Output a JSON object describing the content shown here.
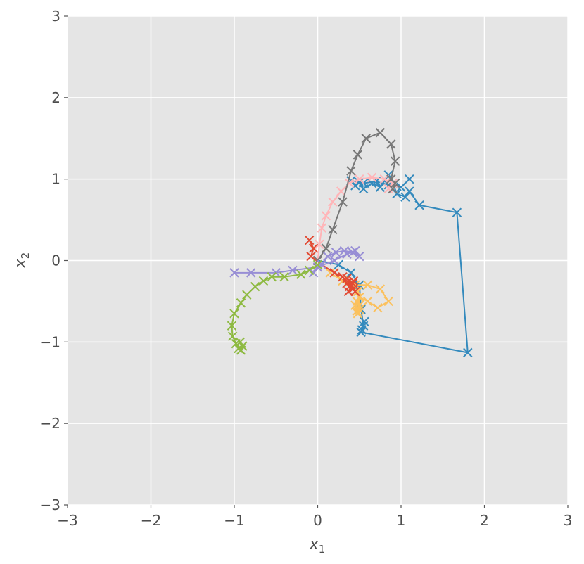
{
  "chart_data": {
    "type": "line",
    "xlabel": "x",
    "xlabel_sub": "1",
    "ylabel": "x",
    "ylabel_sub": "2",
    "xlim": [
      -3,
      3
    ],
    "ylim": [
      -3,
      3
    ],
    "grid": true,
    "marker": "x",
    "xticks": [
      {
        "value": -3,
        "label": "−3"
      },
      {
        "value": -2,
        "label": "−2"
      },
      {
        "value": -1,
        "label": "−1"
      },
      {
        "value": 0,
        "label": "0"
      },
      {
        "value": 1,
        "label": "1"
      },
      {
        "value": 2,
        "label": "2"
      },
      {
        "value": 3,
        "label": "3"
      }
    ],
    "yticks": [
      {
        "value": -3,
        "label": "−3"
      },
      {
        "value": -2,
        "label": "−2"
      },
      {
        "value": -1,
        "label": "−1"
      },
      {
        "value": 0,
        "label": "0"
      },
      {
        "value": 1,
        "label": "1"
      },
      {
        "value": 2,
        "label": "2"
      },
      {
        "value": 3,
        "label": "3"
      }
    ],
    "series": [
      {
        "color": "#348abd",
        "points": [
          [
            0,
            0
          ],
          [
            0.25,
            -0.05
          ],
          [
            0.4,
            -0.15
          ],
          [
            0.5,
            -0.3
          ],
          [
            0.52,
            -0.6
          ],
          [
            0.55,
            -0.8
          ],
          [
            0.53,
            -0.85
          ],
          [
            0.56,
            -0.75
          ],
          [
            0.52,
            -0.88
          ],
          [
            1.8,
            -1.13
          ],
          [
            1.67,
            0.59
          ],
          [
            1.22,
            0.68
          ],
          [
            1.1,
            0.85
          ],
          [
            1.05,
            0.78
          ],
          [
            0.95,
            0.82
          ],
          [
            0.9,
            0.95
          ],
          [
            0.85,
            1.05
          ],
          [
            0.75,
            0.9
          ],
          [
            0.65,
            0.95
          ],
          [
            0.55,
            0.88
          ],
          [
            0.5,
            0.96
          ],
          [
            0.45,
            0.92
          ],
          [
            0.4,
            0.98
          ],
          [
            0.55,
            0.95
          ],
          [
            0.7,
            0.97
          ],
          [
            0.85,
            0.93
          ],
          [
            1.0,
            0.9
          ],
          [
            1.1,
            1.0
          ]
        ]
      },
      {
        "color": "#fbc15e",
        "points": [
          [
            0,
            0
          ],
          [
            0.15,
            -0.15
          ],
          [
            0.3,
            -0.25
          ],
          [
            0.45,
            -0.3
          ],
          [
            0.6,
            -0.3
          ],
          [
            0.75,
            -0.35
          ],
          [
            0.85,
            -0.5
          ],
          [
            0.72,
            -0.58
          ],
          [
            0.6,
            -0.5
          ],
          [
            0.5,
            -0.45
          ],
          [
            0.45,
            -0.55
          ],
          [
            0.48,
            -0.65
          ],
          [
            0.5,
            -0.6
          ],
          [
            0.47,
            -0.5
          ],
          [
            0.5,
            -0.45
          ],
          [
            0.48,
            -0.38
          ],
          [
            0.5,
            -0.55
          ],
          [
            0.47,
            -0.62
          ]
        ]
      },
      {
        "color": "#e24a33",
        "points": [
          [
            -0.1,
            0.25
          ],
          [
            -0.05,
            0.15
          ],
          [
            -0.08,
            0.05
          ],
          [
            0.05,
            -0.05
          ],
          [
            0.2,
            -0.15
          ],
          [
            0.3,
            -0.2
          ],
          [
            0.35,
            -0.28
          ],
          [
            0.4,
            -0.3
          ],
          [
            0.42,
            -0.35
          ],
          [
            0.38,
            -0.32
          ],
          [
            0.43,
            -0.25
          ],
          [
            0.37,
            -0.38
          ],
          [
            0.42,
            -0.28
          ],
          [
            0.35,
            -0.22
          ],
          [
            0.45,
            -0.38
          ]
        ]
      },
      {
        "color": "#ffb5b8",
        "points": [
          [
            0,
            0
          ],
          [
            0.02,
            0.2
          ],
          [
            0.05,
            0.4
          ],
          [
            0.1,
            0.55
          ],
          [
            0.18,
            0.72
          ],
          [
            0.28,
            0.85
          ],
          [
            0.38,
            0.95
          ],
          [
            0.5,
            1.0
          ],
          [
            0.65,
            1.02
          ],
          [
            0.8,
            1.0
          ],
          [
            0.9,
            0.95
          ],
          [
            0.85,
            0.88
          ]
        ]
      },
      {
        "color": "#777777",
        "points": [
          [
            0,
            0
          ],
          [
            0.1,
            0.15
          ],
          [
            0.18,
            0.38
          ],
          [
            0.3,
            0.72
          ],
          [
            0.4,
            1.1
          ],
          [
            0.48,
            1.3
          ],
          [
            0.58,
            1.5
          ],
          [
            0.75,
            1.57
          ],
          [
            0.88,
            1.43
          ],
          [
            0.93,
            1.22
          ],
          [
            0.88,
            1.0
          ],
          [
            0.93,
            0.95
          ],
          [
            0.9,
            0.88
          ]
        ]
      },
      {
        "color": "#988ed5",
        "points": [
          [
            -0.05,
            -0.15
          ],
          [
            0.05,
            -0.05
          ],
          [
            0.12,
            0.05
          ],
          [
            0.22,
            0.1
          ],
          [
            0.32,
            0.12
          ],
          [
            0.42,
            0.1
          ],
          [
            0.5,
            0.05
          ],
          [
            0.45,
            0.12
          ],
          [
            0.35,
            0.08
          ],
          [
            0.2,
            0.0
          ],
          [
            0.0,
            -0.08
          ],
          [
            -0.3,
            -0.12
          ],
          [
            -0.5,
            -0.15
          ],
          [
            -0.8,
            -0.15
          ],
          [
            -1.0,
            -0.15
          ]
        ]
      },
      {
        "color": "#8eba42",
        "points": [
          [
            0,
            -0.05
          ],
          [
            -0.1,
            -0.12
          ],
          [
            -0.2,
            -0.17
          ],
          [
            -0.4,
            -0.2
          ],
          [
            -0.55,
            -0.2
          ],
          [
            -0.65,
            -0.25
          ],
          [
            -0.75,
            -0.32
          ],
          [
            -0.85,
            -0.42
          ],
          [
            -0.92,
            -0.52
          ],
          [
            -1.0,
            -0.65
          ],
          [
            -1.03,
            -0.8
          ],
          [
            -1.02,
            -0.93
          ],
          [
            -0.98,
            -1.02
          ],
          [
            -0.95,
            -1.08
          ],
          [
            -0.92,
            -1.1
          ],
          [
            -0.9,
            -1.05
          ],
          [
            -0.93,
            -1.0
          ]
        ]
      }
    ]
  }
}
